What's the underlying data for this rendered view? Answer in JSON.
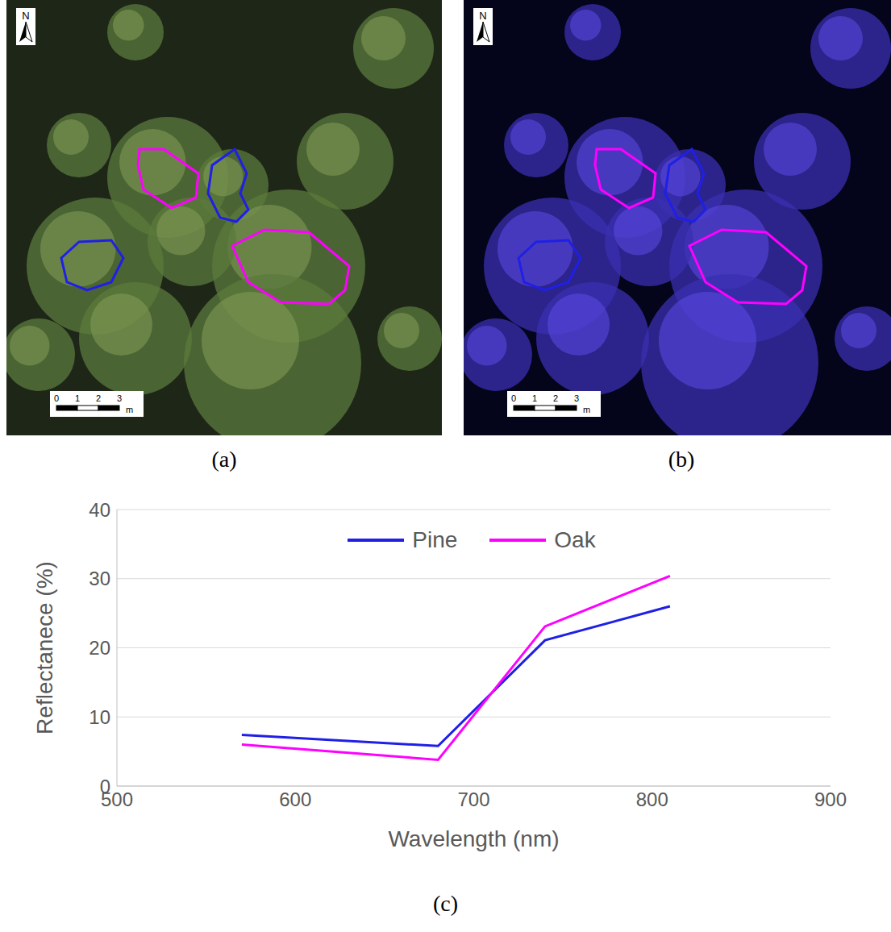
{
  "panels": [
    {
      "panel_label": "(a)",
      "north": "N",
      "scale_bar": {
        "ticks": [
          0,
          1,
          2,
          3
        ],
        "unit": "m"
      }
    },
    {
      "panel_label": "(b)",
      "north": "N",
      "scale_bar": {
        "ticks": [
          0,
          1,
          2,
          3
        ],
        "unit": "m"
      }
    }
  ],
  "chart_data": {
    "panel_label": "(c)",
    "type": "line",
    "x_label": "Wavelength (nm)",
    "y_label": "Reflectanece (%)",
    "x": [
      570,
      680,
      740,
      810
    ],
    "series": [
      {
        "name": "Pine",
        "color": "#1f1fe6",
        "values": [
          7.4,
          5.8,
          21.1,
          26.0
        ]
      },
      {
        "name": "Oak",
        "color": "#ff00ff",
        "values": [
          6.0,
          3.8,
          23.1,
          30.4
        ]
      }
    ],
    "xlim": [
      500,
      900
    ],
    "xticks": [
      500,
      600,
      700,
      800,
      900
    ],
    "ylim": [
      0,
      40
    ],
    "yticks": [
      0,
      10,
      20,
      30,
      40
    ],
    "grid": true,
    "legend": "top"
  }
}
